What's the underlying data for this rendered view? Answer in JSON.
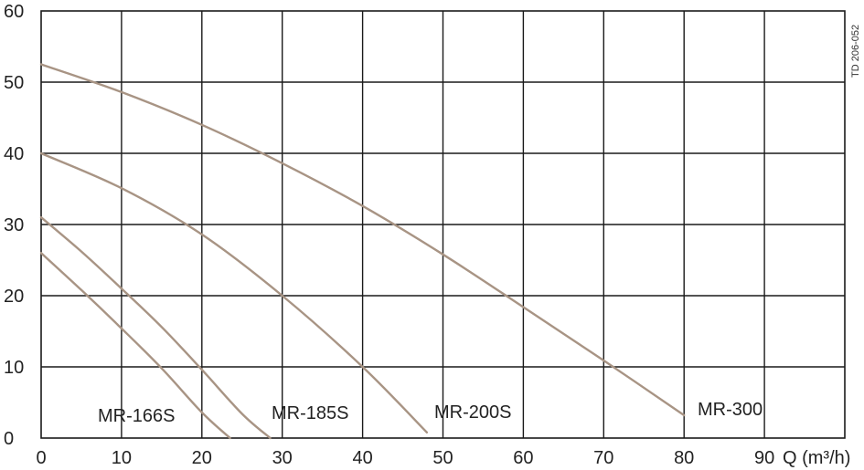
{
  "doc_code": "TD 206-052",
  "chart_data": {
    "type": "line",
    "title": "",
    "xlabel": "",
    "ylabel": "",
    "x_unit_label": "Q (m³/h)",
    "xlim": [
      0,
      100
    ],
    "ylim": [
      0,
      60
    ],
    "x_ticks": [
      0,
      10,
      20,
      30,
      40,
      50,
      60,
      70,
      80,
      90
    ],
    "x_tick_labels": [
      "0",
      "10",
      "20",
      "30",
      "40",
      "50",
      "60",
      "70",
      "80",
      "90"
    ],
    "y_ticks": [
      0,
      10,
      20,
      30,
      40,
      50,
      60
    ],
    "y_tick_labels": [
      "0",
      "10",
      "20",
      "30",
      "40",
      "50",
      "60"
    ],
    "grid": true,
    "line_color": "#a89484",
    "series": [
      {
        "name": "MR-166S",
        "x": [
          0,
          5,
          10,
          15,
          20,
          23.5
        ],
        "y": [
          26,
          20.8,
          15.4,
          9.8,
          3.6,
          0
        ]
      },
      {
        "name": "MR-185S",
        "x": [
          0,
          5,
          10,
          15,
          20,
          25,
          28.5
        ],
        "y": [
          31,
          26.2,
          21,
          15.6,
          9.6,
          3.4,
          0
        ]
      },
      {
        "name": "MR-200S",
        "x": [
          0,
          10,
          20,
          30,
          40,
          48
        ],
        "y": [
          40,
          35.1,
          28.6,
          20,
          10,
          0.8
        ]
      },
      {
        "name": "MR-300",
        "x": [
          0,
          10,
          20,
          30,
          40,
          50,
          60,
          70,
          80
        ],
        "y": [
          52.5,
          48.6,
          44,
          38.6,
          32.6,
          25.8,
          18.4,
          10.9,
          3.2
        ]
      }
    ]
  }
}
